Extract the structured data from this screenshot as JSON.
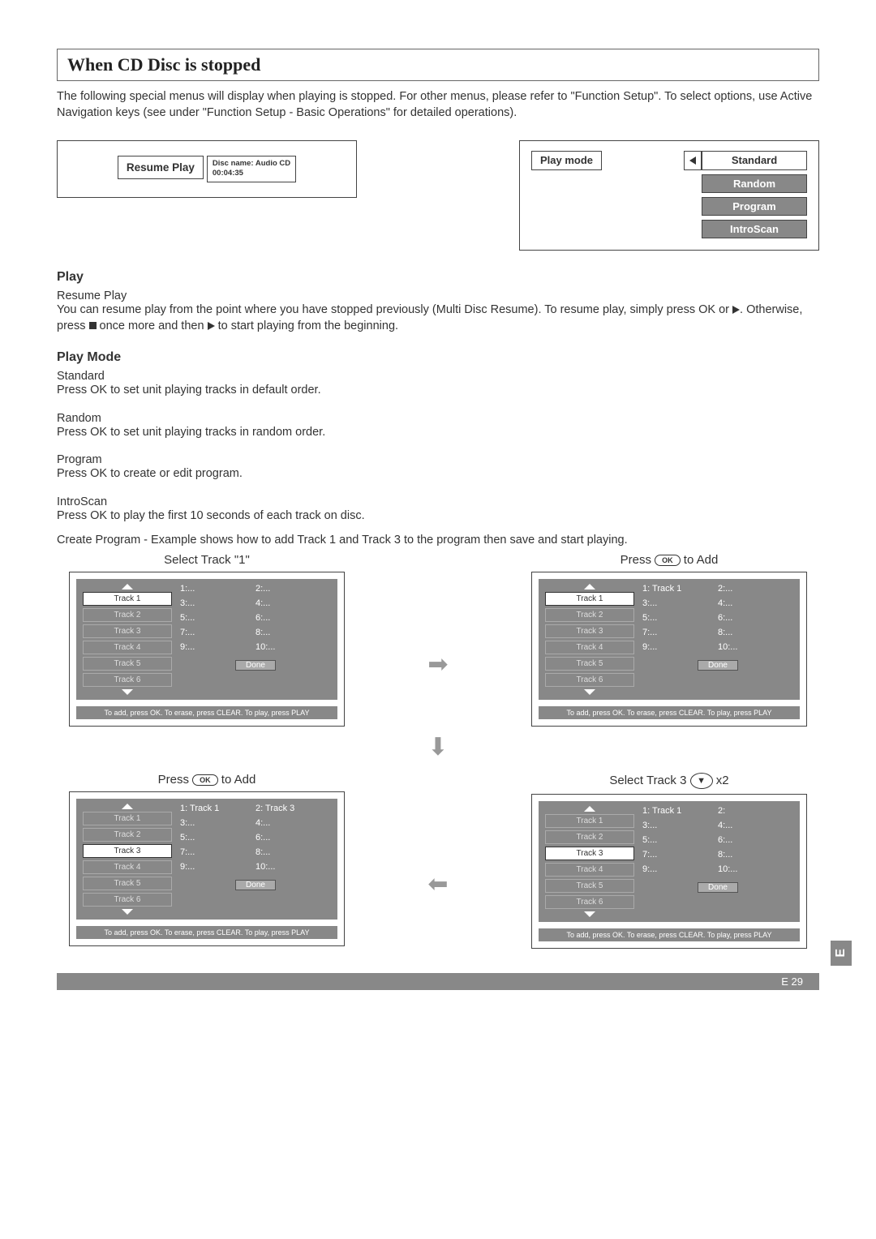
{
  "title": "When CD Disc is stopped",
  "intro": "The following special menus will display when playing is stopped. For other menus, please refer to \"Function Setup\". To select options, use Active Navigation keys (see under \"Function Setup - Basic Operations\" for detailed operations).",
  "resume_box": {
    "label": "Resume Play",
    "disc_name": "Disc name: Audio CD",
    "time": "00:04:35"
  },
  "playmode_box": {
    "label": "Play mode",
    "options": [
      "Standard",
      "Random",
      "Program",
      "IntroScan"
    ]
  },
  "play_section": {
    "heading": "Play",
    "sub": "Resume Play",
    "body1": "You can resume play from the point where you have stopped previously (Multi Disc Resume). To resume play, simply press OK or ",
    "body2": ". Otherwise, press ",
    "body3": " once more and then ",
    "body4": " to start playing from the beginning."
  },
  "playmode_section": {
    "heading": "Play Mode",
    "standard_h": "Standard",
    "standard_b": "Press OK to set unit playing tracks in default order.",
    "random_h": "Random",
    "random_b": "Press OK to set unit playing tracks in random order.",
    "program_h": "Program",
    "program_b": "Press OK to create or edit program.",
    "introscan_h": "IntroScan",
    "introscan_b": "Press OK to play  the first 10 seconds of each track on disc."
  },
  "create_program_intro": "Create Program    - Example shows how to add Track 1 and Track 3 to  the program then save and start playing.",
  "captions": {
    "c1": "Select Track \"1\"",
    "c2_pre": "Press ",
    "c2_post": " to  Add",
    "c3_pre": "Press ",
    "c3_post": " to Add",
    "c4_pre": "Select Track 3   ",
    "c4_post": "   x2"
  },
  "screens": {
    "tracks": [
      "Track  1",
      "Track  2",
      "Track  3",
      "Track  4",
      "Track  5",
      "Track  6"
    ],
    "s1": {
      "sel_index": 0,
      "slots": [
        [
          "1:...",
          "2:..."
        ],
        [
          "3:...",
          "4:..."
        ],
        [
          "5:...",
          "6:..."
        ],
        [
          "7:...",
          "8:..."
        ],
        [
          "9:...",
          "10:..."
        ]
      ]
    },
    "s2": {
      "sel_index": 0,
      "slots": [
        [
          "1:  Track  1",
          "2:..."
        ],
        [
          "3:...",
          "4:..."
        ],
        [
          "5:...",
          "6:..."
        ],
        [
          "7:...",
          "8:..."
        ],
        [
          "9:...",
          "10:..."
        ]
      ]
    },
    "s3": {
      "sel_index": 2,
      "slots": [
        [
          "1:  Track  1",
          "2:  Track  3"
        ],
        [
          "3:...",
          "4:..."
        ],
        [
          "5:...",
          "6:..."
        ],
        [
          "7:...",
          "8:..."
        ],
        [
          "9:...",
          "10:..."
        ]
      ]
    },
    "s4": {
      "sel_index": 2,
      "slots": [
        [
          "1:  Track  1",
          "2:"
        ],
        [
          "3:...",
          "4:..."
        ],
        [
          "5:...",
          "6:..."
        ],
        [
          "7:...",
          "8:..."
        ],
        [
          "9:...",
          "10:..."
        ]
      ]
    },
    "done": "Done",
    "foot": "To add, press OK. To erase, press CLEAR. To play, press PLAY"
  },
  "ok_label": "OK",
  "page_num": "E 29",
  "side_tab": "E"
}
